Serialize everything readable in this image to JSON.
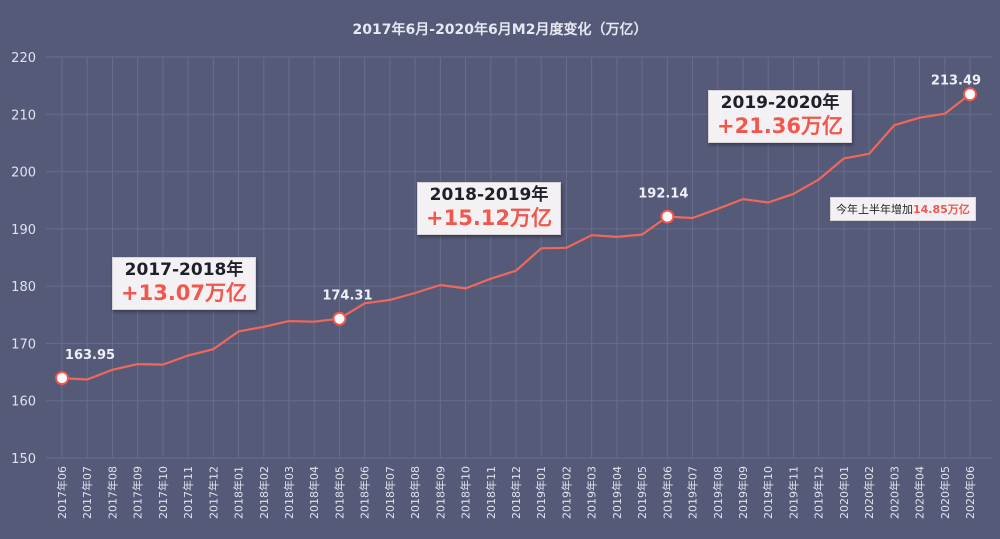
{
  "chart_data": {
    "type": "line",
    "title": "2017年6月-2020年6月M2月度变化（万亿）",
    "xlabel": "",
    "ylabel": "",
    "ylim": [
      150,
      220
    ],
    "yticks": [
      150,
      160,
      170,
      180,
      190,
      200,
      210,
      220
    ],
    "grid": true,
    "legend": "none",
    "colors": {
      "background": "#545a78",
      "line": "#f0675c",
      "grid": "#676d8c",
      "text": "#e0e3ee",
      "highlight": "#f2574c"
    },
    "categories": [
      "2017年06",
      "2017年07",
      "2017年08",
      "2017年09",
      "2017年10",
      "2017年11",
      "2017年12",
      "2018年01",
      "2018年02",
      "2018年03",
      "2018年04",
      "2018年05",
      "2018年06",
      "2018年07",
      "2018年08",
      "2018年09",
      "2018年10",
      "2018年11",
      "2018年12",
      "2019年01",
      "2019年02",
      "2019年03",
      "2019年04",
      "2019年05",
      "2019年06",
      "2019年07",
      "2019年08",
      "2019年09",
      "2019年10",
      "2019年11",
      "2019年12",
      "2020年01",
      "2020年02",
      "2020年03",
      "2020年04",
      "2020年05",
      "2020年06"
    ],
    "series": [
      {
        "values": [
          163.95,
          163.7,
          165.4,
          166.4,
          166.3,
          167.9,
          169.0,
          172.1,
          172.9,
          173.9,
          173.8,
          174.31,
          177.0,
          177.6,
          178.8,
          180.2,
          179.6,
          181.3,
          182.7,
          186.6,
          186.7,
          188.9,
          188.6,
          189.0,
          192.14,
          191.9,
          193.5,
          195.2,
          194.6,
          196.1,
          198.6,
          202.3,
          203.1,
          208.1,
          209.4,
          210.1,
          213.49
        ]
      }
    ],
    "point_labels": [
      {
        "index": 0,
        "text": "163.95"
      },
      {
        "index": 11,
        "text": "174.31"
      },
      {
        "index": 24,
        "text": "192.14"
      },
      {
        "index": 36,
        "text": "213.49"
      }
    ],
    "annotations": [
      {
        "period": "2017-2018年",
        "change": "+13.07万亿"
      },
      {
        "period": "2018-2019年",
        "change": "+15.12万亿"
      },
      {
        "period": "2019-2020年",
        "change": "+21.36万亿"
      }
    ],
    "note": {
      "prefix": "今年上半年增加",
      "value": "14.85万亿"
    }
  }
}
